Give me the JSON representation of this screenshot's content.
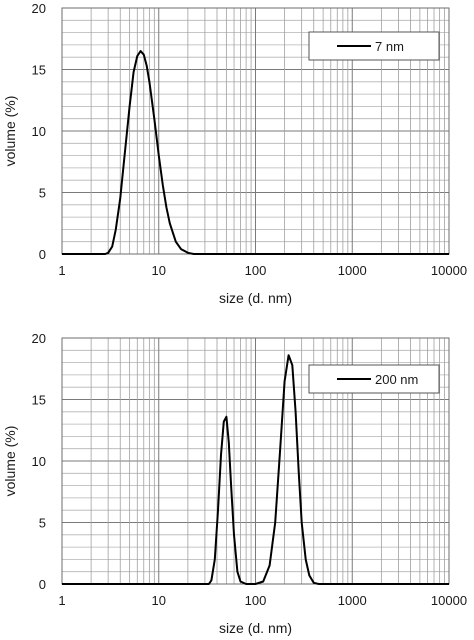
{
  "chart_data": [
    {
      "type": "line",
      "xscale": "log",
      "xlim": [
        1,
        10000
      ],
      "ylim": [
        0,
        20
      ],
      "xticks": [
        "1",
        "10",
        "100",
        "1000",
        "10000"
      ],
      "yticks": [
        "0",
        "5",
        "10",
        "15",
        "20"
      ],
      "xlabel": "size (d. nm)",
      "ylabel": "volume (%)",
      "grid": true,
      "legend_position": "top-right",
      "series": [
        {
          "name": "7 nm",
          "color": "#000000",
          "x": [
            1,
            2.8,
            3.0,
            3.3,
            3.6,
            4.0,
            4.5,
            5.0,
            5.5,
            6.0,
            6.5,
            7.0,
            7.5,
            8.0,
            9.0,
            10.0,
            11.0,
            12.0,
            13.0,
            15.0,
            17.0,
            20.0,
            23.0,
            26.0,
            10000
          ],
          "y": [
            0,
            0,
            0.1,
            0.6,
            2.0,
            4.5,
            8.5,
            12.0,
            14.8,
            16.1,
            16.5,
            16.2,
            15.3,
            14.0,
            11.0,
            8.0,
            5.6,
            3.8,
            2.5,
            1.0,
            0.4,
            0.1,
            0,
            0,
            0
          ]
        }
      ]
    },
    {
      "type": "line",
      "xscale": "log",
      "xlim": [
        1,
        10000
      ],
      "ylim": [
        0,
        20
      ],
      "xticks": [
        "1",
        "10",
        "100",
        "1000",
        "10000"
      ],
      "yticks": [
        "0",
        "5",
        "10",
        "15",
        "20"
      ],
      "xlabel": "size (d. nm)",
      "ylabel": "volume (%)",
      "grid": true,
      "legend_position": "top-right",
      "series": [
        {
          "name": "200 nm",
          "color": "#000000",
          "x": [
            1,
            33,
            35,
            38,
            41,
            44,
            47,
            50,
            53,
            56,
            60,
            65,
            70,
            80,
            90,
            100,
            120,
            140,
            160,
            180,
            200,
            220,
            240,
            260,
            280,
            300,
            330,
            360,
            400,
            450,
            10000
          ],
          "y": [
            0,
            0,
            0.3,
            2.0,
            6.0,
            10.5,
            13.2,
            13.6,
            11.5,
            8.0,
            4.0,
            1.0,
            0.2,
            0,
            0,
            0,
            0.2,
            1.5,
            5.0,
            11.0,
            16.5,
            18.6,
            17.8,
            14.0,
            9.0,
            5.0,
            2.0,
            0.7,
            0.1,
            0,
            0
          ]
        }
      ]
    }
  ]
}
